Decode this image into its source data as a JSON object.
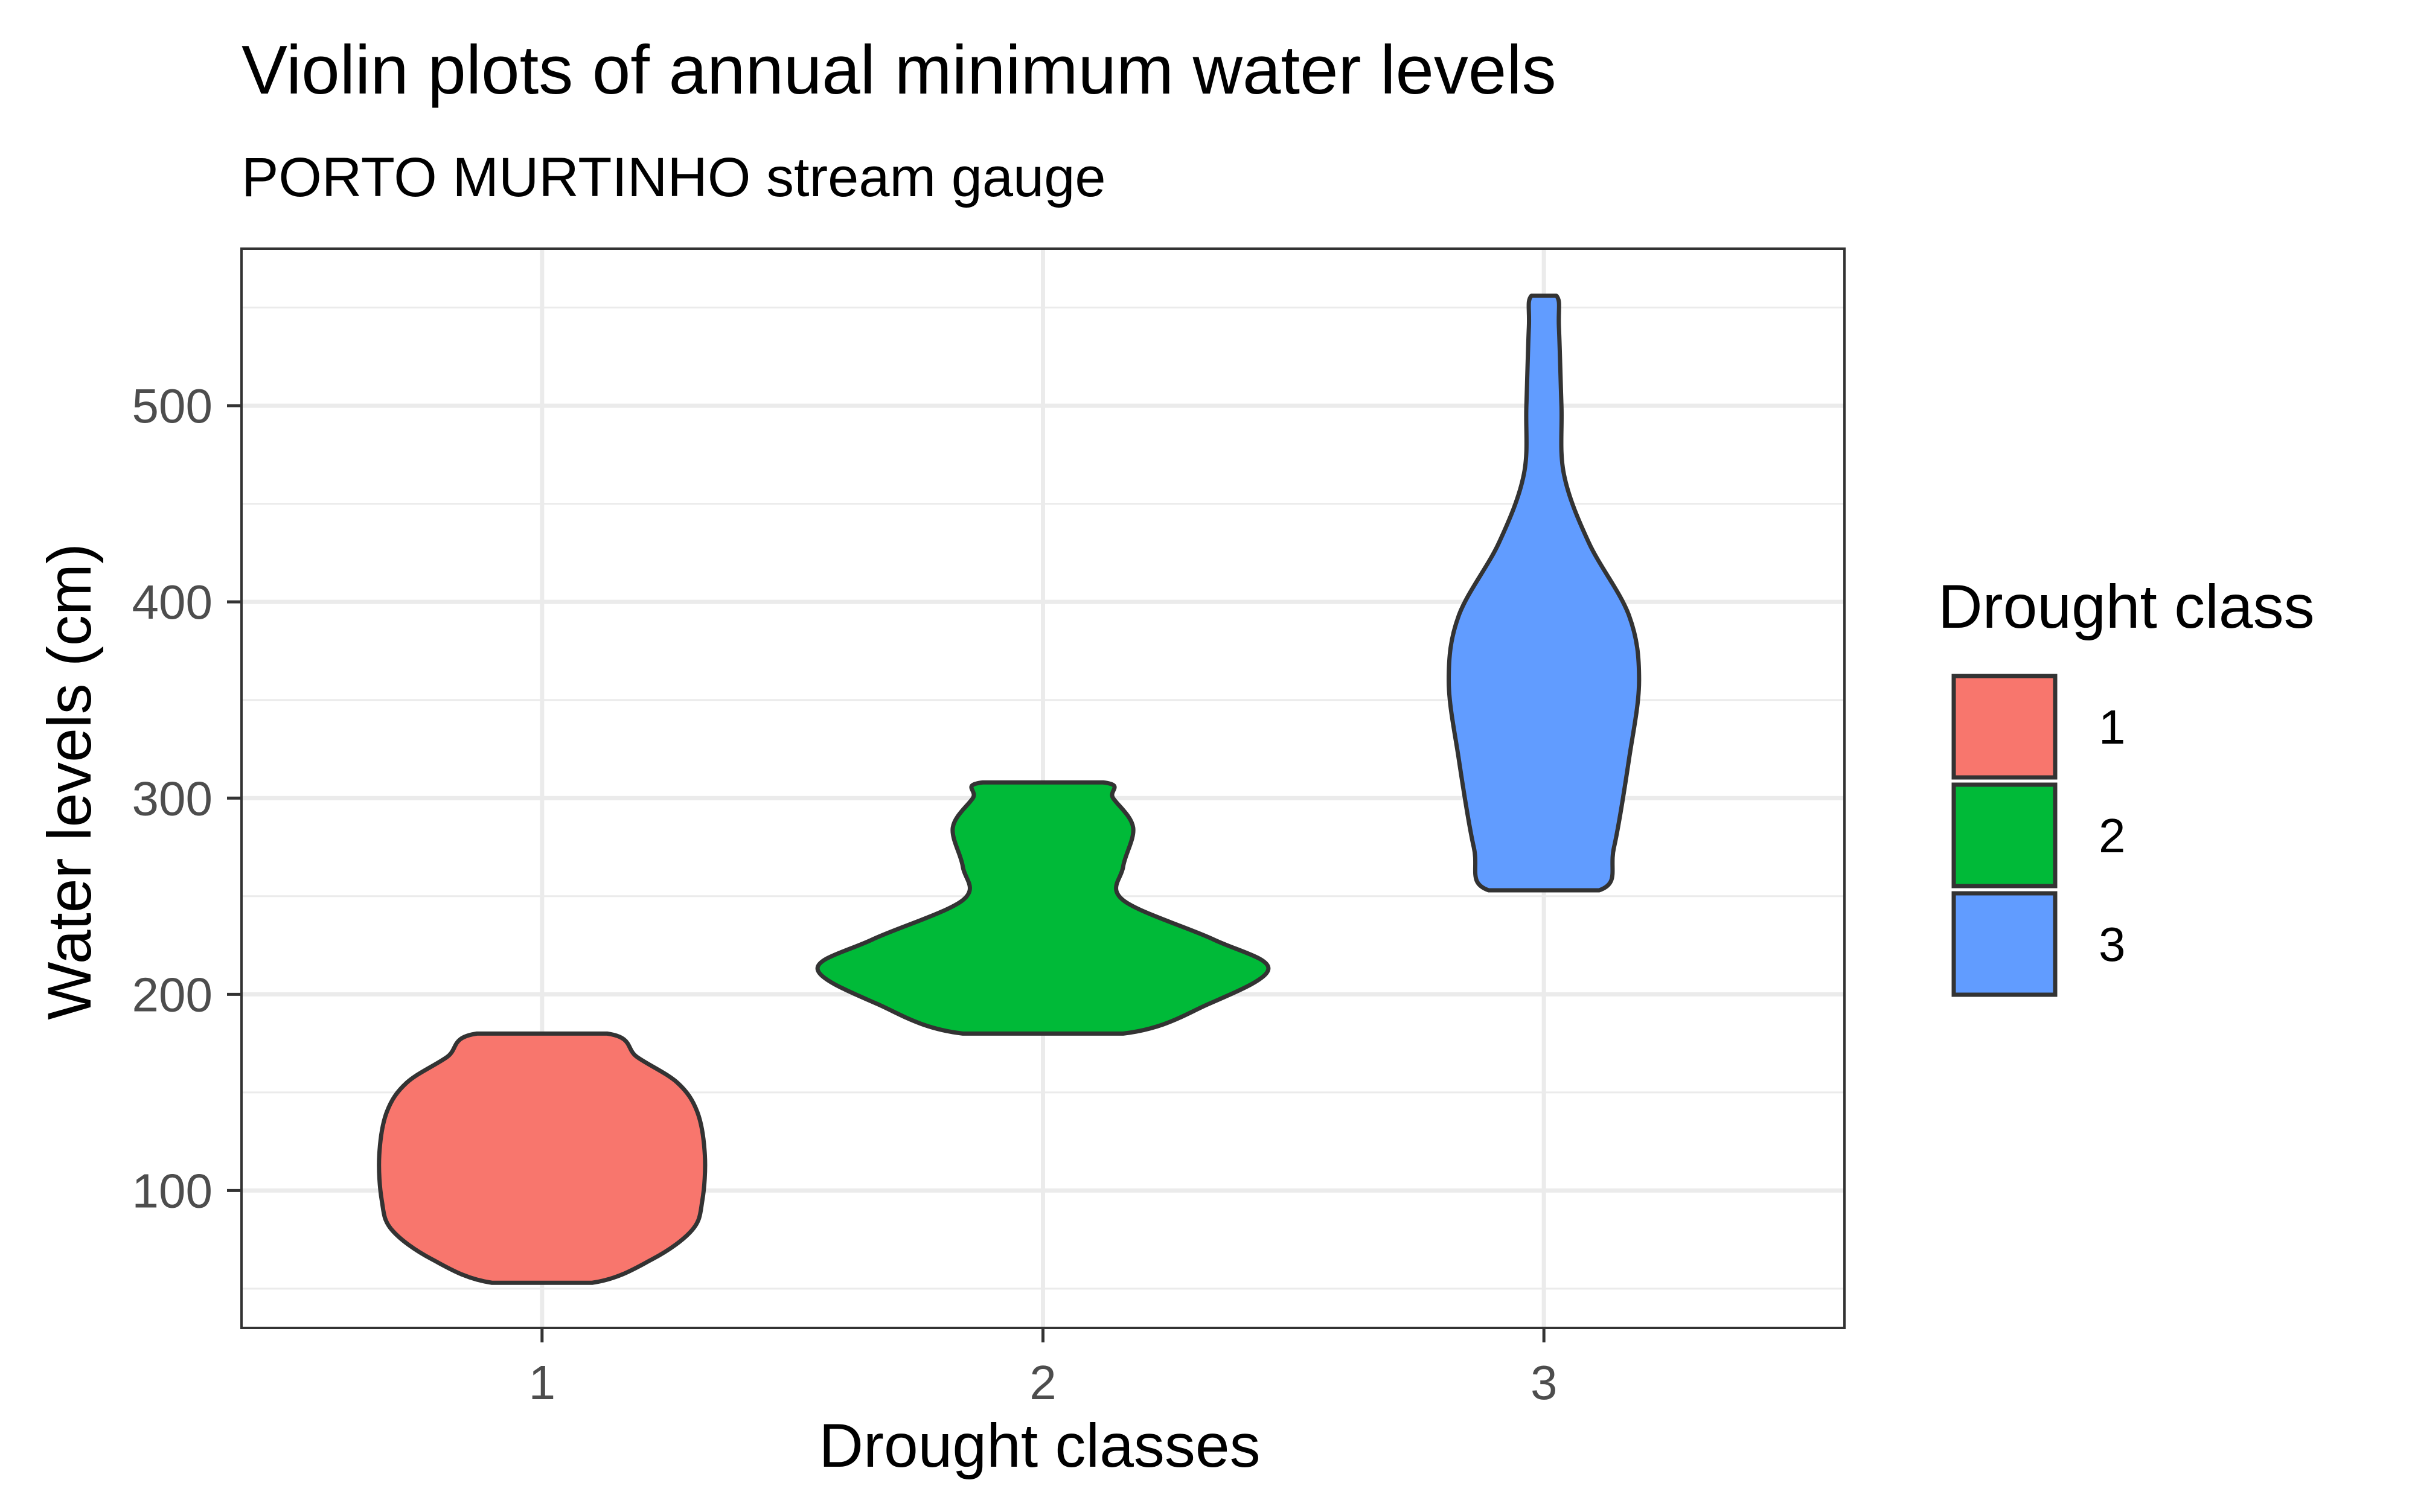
{
  "chart_data": {
    "type": "violin",
    "title": "Violin plots of annual minimum water levels",
    "subtitle": "PORTO MURTINHO stream gauge",
    "xlabel": "Drought classes",
    "ylabel": "Water levels (cm)",
    "categories": [
      "1",
      "2",
      "3"
    ],
    "ylim": [
      30,
      580
    ],
    "yticks": [
      100,
      200,
      300,
      400,
      500
    ],
    "grid": true,
    "legend": {
      "title": "Drought class",
      "placement": "right",
      "items": [
        {
          "label": "1",
          "color": "#F8766D"
        },
        {
          "label": "2",
          "color": "#00BA38"
        },
        {
          "label": "3",
          "color": "#619CFF"
        }
      ]
    },
    "series": [
      {
        "category": "1",
        "color": "#F8766D",
        "min": 53,
        "max": 180,
        "profile": [
          {
            "y": 53,
            "hw": 0.1
          },
          {
            "y": 65,
            "hw": 0.22
          },
          {
            "y": 80,
            "hw": 0.3
          },
          {
            "y": 95,
            "hw": 0.32
          },
          {
            "y": 118,
            "hw": 0.325
          },
          {
            "y": 140,
            "hw": 0.31
          },
          {
            "y": 155,
            "hw": 0.27
          },
          {
            "y": 168,
            "hw": 0.19
          },
          {
            "y": 180,
            "hw": 0.13
          }
        ]
      },
      {
        "category": "2",
        "color": "#00BA38",
        "min": 180,
        "max": 308,
        "profile": [
          {
            "y": 180,
            "hw": 0.16
          },
          {
            "y": 195,
            "hw": 0.33
          },
          {
            "y": 213,
            "hw": 0.45
          },
          {
            "y": 228,
            "hw": 0.34
          },
          {
            "y": 248,
            "hw": 0.16
          },
          {
            "y": 265,
            "hw": 0.16
          },
          {
            "y": 285,
            "hw": 0.18
          },
          {
            "y": 300,
            "hw": 0.14
          },
          {
            "y": 308,
            "hw": 0.12
          }
        ]
      },
      {
        "category": "3",
        "color": "#619CFF",
        "min": 253,
        "max": 556,
        "profile": [
          {
            "y": 253,
            "hw": 0.11
          },
          {
            "y": 275,
            "hw": 0.14
          },
          {
            "y": 320,
            "hw": 0.17
          },
          {
            "y": 360,
            "hw": 0.19
          },
          {
            "y": 393,
            "hw": 0.17
          },
          {
            "y": 430,
            "hw": 0.09
          },
          {
            "y": 465,
            "hw": 0.04
          },
          {
            "y": 500,
            "hw": 0.035
          },
          {
            "y": 540,
            "hw": 0.03
          },
          {
            "y": 556,
            "hw": 0.025
          }
        ]
      }
    ]
  }
}
